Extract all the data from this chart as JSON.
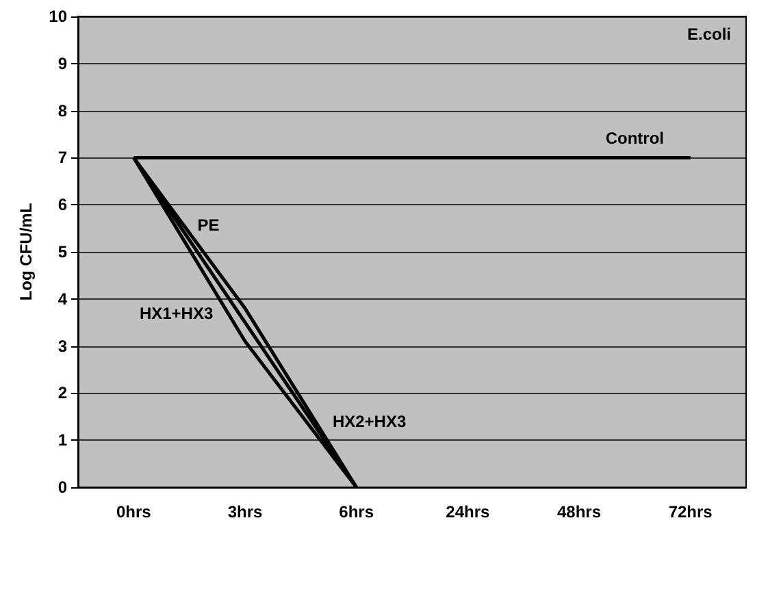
{
  "chart_data": {
    "type": "line",
    "title": "E.coli",
    "ylabel": "Log CFU/mL",
    "categories": [
      "0hrs",
      "3hrs",
      "6hrs",
      "24hrs",
      "48hrs",
      "72hrs"
    ],
    "ylim": [
      0,
      10
    ],
    "yticks": [
      0,
      1,
      2,
      3,
      4,
      5,
      6,
      7,
      8,
      9,
      10
    ],
    "series": [
      {
        "name": "Control",
        "color": "#000000",
        "values": [
          7,
          7,
          7,
          7,
          7,
          7
        ]
      },
      {
        "name": "PE",
        "color": "#000000",
        "values": [
          7,
          3.8,
          0,
          null,
          null,
          null
        ]
      },
      {
        "name": "HX1+HX3",
        "color": "#000000",
        "values": [
          7,
          3.1,
          0,
          null,
          null,
          null
        ]
      },
      {
        "name": "HX2+HX3",
        "color": "#000000",
        "values": [
          7,
          3.5,
          0,
          null,
          null,
          null
        ]
      }
    ],
    "grid": "y",
    "legend": false,
    "marker": "none",
    "line_style": "solid"
  }
}
